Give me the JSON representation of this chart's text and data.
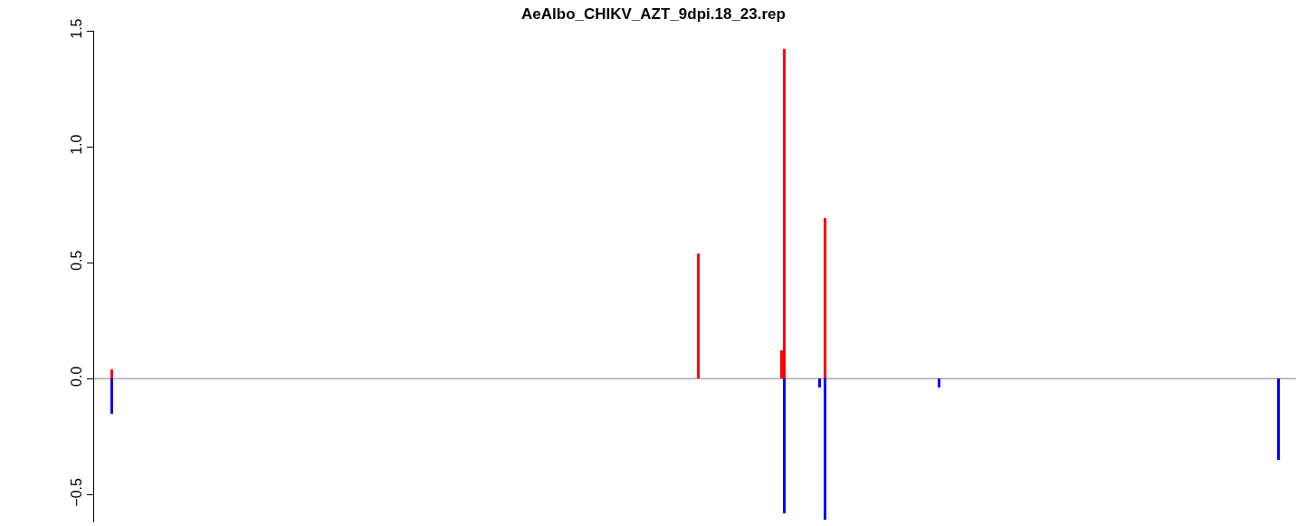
{
  "chart_data": {
    "type": "bar",
    "title": "AeAlbo_CHIKV_AZT_9dpi.18_23.rep",
    "grid": false,
    "tick_labels": "y",
    "ylim": [
      -0.62,
      1.5
    ],
    "yticks": [
      {
        "value": -0.5,
        "label": "−0.5"
      },
      {
        "value": 0,
        "label": "0.0"
      },
      {
        "value": 0.5,
        "label": "0.5"
      },
      {
        "value": 1,
        "label": "1.0"
      },
      {
        "value": 1.5,
        "label": "1.5"
      }
    ],
    "ref_lines": [
      {
        "axis": "y",
        "value": 0,
        "color": "#808080"
      }
    ],
    "categories": [
      null,
      null,
      null,
      null,
      null,
      null,
      null,
      null,
      null,
      null,
      null,
      null,
      null,
      null,
      null,
      null,
      null,
      null,
      null,
      null,
      null,
      null,
      null,
      null,
      null,
      null,
      null,
      null,
      null,
      null,
      null,
      null,
      null,
      null,
      null,
      null,
      null,
      null,
      null,
      null,
      null,
      null,
      null,
      null,
      null,
      null,
      null,
      null,
      null,
      null,
      null,
      null,
      null,
      null,
      null,
      null,
      null,
      null,
      null,
      null,
      null,
      null,
      null,
      null,
      null,
      null,
      null,
      null,
      null,
      null,
      null,
      null,
      null,
      null,
      null,
      null,
      null,
      null,
      null,
      null,
      null,
      null,
      null,
      null,
      null,
      null,
      null,
      null,
      null,
      null,
      null,
      null,
      null,
      null,
      null,
      null,
      null,
      null,
      null,
      null,
      null,
      null,
      null,
      null,
      null,
      null,
      null,
      null,
      null,
      null,
      null,
      null,
      null,
      null,
      null,
      null,
      null,
      null,
      null,
      null,
      null,
      null,
      null,
      null,
      null,
      null,
      null,
      null,
      null,
      null,
      null,
      null,
      null,
      null,
      null,
      null,
      null,
      null,
      null,
      null,
      null,
      null,
      null,
      null,
      null,
      null,
      null,
      null,
      null,
      null,
      null,
      null,
      null,
      null,
      null,
      null,
      null,
      null,
      null,
      null,
      null,
      null,
      null,
      null,
      null,
      null,
      null,
      null,
      null,
      null,
      null,
      null,
      null,
      null,
      null,
      null,
      null,
      null,
      null,
      null,
      null,
      null,
      null,
      null,
      null,
      null,
      null,
      null,
      null,
      null,
      null,
      null,
      null,
      null,
      null,
      null,
      null,
      null,
      null,
      null,
      null,
      null,
      null,
      null,
      null,
      null,
      null,
      null,
      null,
      null,
      null,
      null,
      null,
      null,
      null,
      null,
      null,
      null,
      null,
      null,
      null,
      null,
      null,
      null,
      null,
      null,
      null,
      null,
      null,
      null,
      null,
      null,
      null,
      null,
      null,
      null,
      null,
      null,
      null,
      null,
      null,
      null,
      null,
      null,
      null,
      null,
      null,
      null,
      null,
      null,
      null,
      null,
      null,
      null,
      null,
      null,
      null,
      null,
      null,
      null,
      null,
      null,
      null,
      null,
      null,
      null,
      null,
      null,
      null,
      null,
      null,
      null,
      null,
      null,
      null,
      null,
      null,
      null,
      null,
      null,
      null,
      null,
      null,
      null,
      null,
      null,
      null,
      null,
      null,
      null,
      null,
      null,
      null,
      null,
      null,
      null,
      null,
      null,
      null,
      null,
      null,
      null,
      null,
      null,
      null,
      null,
      null,
      null,
      null,
      null,
      null,
      null,
      null,
      null,
      null,
      null,
      null,
      null,
      null,
      null,
      null,
      null,
      null,
      null,
      null,
      null,
      null,
      null,
      null,
      null,
      null,
      null,
      null,
      null,
      null,
      null,
      null,
      null,
      null,
      null,
      null,
      null,
      null,
      null,
      null,
      null,
      null,
      null,
      null,
      null,
      null,
      null,
      null,
      null,
      null,
      null,
      null,
      null,
      null,
      null,
      null,
      null,
      null,
      null,
      null,
      null,
      null,
      null,
      null,
      null,
      null,
      null,
      null,
      null,
      null,
      null,
      null,
      null,
      null,
      null,
      null,
      null,
      null,
      null,
      null,
      null,
      null,
      null,
      null,
      null,
      null,
      null,
      null,
      null,
      null,
      null,
      null,
      null,
      null,
      null,
      null,
      null,
      null,
      null,
      null,
      null,
      null,
      null,
      null,
      null,
      null,
      null,
      null,
      null,
      null,
      null,
      null,
      null,
      null,
      null,
      null,
      null,
      null,
      null,
      null,
      null,
      null,
      null,
      null,
      null,
      null,
      null,
      null,
      null,
      null,
      null,
      null,
      null,
      null,
      null,
      null,
      null,
      null
    ],
    "series": [
      {
        "color": "#ff0000",
        "values": [
          null,
          null,
          null,
          null,
          null,
          null,
          0.04,
          null,
          null,
          null,
          null,
          null,
          null,
          null,
          null,
          null,
          null,
          null,
          null,
          null,
          null,
          null,
          null,
          null,
          null,
          null,
          null,
          null,
          null,
          null,
          null,
          null,
          null,
          null,
          null,
          null,
          null,
          null,
          null,
          null,
          null,
          null,
          null,
          null,
          null,
          null,
          null,
          null,
          null,
          null,
          null,
          null,
          null,
          null,
          null,
          null,
          null,
          null,
          null,
          null,
          null,
          null,
          null,
          null,
          null,
          null,
          null,
          null,
          null,
          null,
          null,
          null,
          null,
          null,
          null,
          null,
          null,
          null,
          null,
          null,
          null,
          null,
          null,
          null,
          null,
          null,
          null,
          null,
          null,
          null,
          null,
          null,
          null,
          null,
          null,
          null,
          null,
          null,
          null,
          null,
          null,
          null,
          null,
          null,
          null,
          null,
          null,
          null,
          null,
          null,
          null,
          null,
          null,
          null,
          null,
          null,
          null,
          null,
          null,
          null,
          null,
          null,
          null,
          null,
          null,
          null,
          null,
          null,
          null,
          null,
          null,
          null,
          null,
          null,
          null,
          null,
          null,
          null,
          null,
          null,
          null,
          null,
          null,
          null,
          null,
          null,
          null,
          null,
          null,
          null,
          null,
          null,
          null,
          null,
          null,
          null,
          null,
          null,
          null,
          null,
          null,
          null,
          null,
          null,
          null,
          null,
          null,
          null,
          null,
          null,
          null,
          null,
          null,
          null,
          null,
          null,
          null,
          null,
          null,
          null,
          null,
          null,
          null,
          null,
          null,
          null,
          null,
          null,
          null,
          null,
          null,
          null,
          null,
          null,
          null,
          null,
          null,
          null,
          null,
          null,
          null,
          null,
          null,
          null,
          null,
          null,
          null,
          null,
          null,
          null,
          null,
          null,
          null,
          null,
          null,
          null,
          null,
          null,
          null,
          null,
          null,
          null,
          0.54,
          null,
          null,
          null,
          null,
          null,
          null,
          null,
          null,
          null,
          null,
          null,
          null,
          null,
          null,
          null,
          null,
          null,
          null,
          null,
          null,
          null,
          null,
          null,
          null,
          null,
          null,
          null,
          null,
          null,
          null,
          0.12,
          1.42,
          null,
          null,
          null,
          null,
          null,
          null,
          null,
          null,
          null,
          null,
          null,
          null,
          null,
          null,
          0.69,
          null,
          null,
          null,
          null,
          null,
          null,
          null,
          null,
          null,
          null,
          null,
          null,
          null,
          null,
          null,
          null,
          null,
          null,
          null,
          null,
          null,
          null,
          null,
          null,
          null,
          null,
          null,
          null,
          null,
          null,
          null,
          null,
          null,
          null,
          null,
          null,
          null,
          null,
          null,
          null,
          null,
          null,
          null,
          null,
          null,
          null,
          null,
          null,
          null,
          null,
          null,
          null,
          null,
          null,
          null,
          null,
          null,
          null,
          null,
          null,
          null,
          null,
          null,
          null,
          null,
          null,
          null,
          null,
          null,
          null,
          null,
          null,
          null,
          null,
          null,
          null,
          null,
          null,
          null,
          null,
          null,
          null,
          null,
          null,
          null,
          null,
          null,
          null,
          null,
          null,
          null,
          null,
          null,
          null,
          null,
          null,
          null,
          null,
          null,
          null,
          null,
          null,
          null,
          null,
          null,
          null,
          null,
          null,
          null,
          null,
          null,
          null,
          null,
          null,
          null,
          null,
          null,
          null,
          null,
          null,
          null,
          null,
          null,
          null,
          null,
          null,
          null,
          null,
          null,
          null,
          null,
          null,
          null,
          null,
          null,
          null,
          null,
          null,
          null,
          null,
          null,
          null,
          null,
          null,
          null,
          null,
          null,
          null,
          null,
          null,
          null,
          null,
          null,
          null,
          null,
          null,
          null,
          null,
          null,
          null,
          null,
          null,
          null,
          null,
          null,
          null,
          null,
          null,
          null,
          null,
          null,
          null,
          null
        ]
      },
      {
        "color": "#0000ff",
        "values": [
          null,
          null,
          null,
          null,
          null,
          null,
          -0.15,
          null,
          null,
          null,
          null,
          null,
          null,
          null,
          null,
          null,
          null,
          null,
          null,
          null,
          null,
          null,
          null,
          null,
          null,
          null,
          null,
          null,
          null,
          null,
          null,
          null,
          null,
          null,
          null,
          null,
          null,
          null,
          null,
          null,
          null,
          null,
          null,
          null,
          null,
          null,
          null,
          null,
          null,
          null,
          null,
          null,
          null,
          null,
          null,
          null,
          null,
          null,
          null,
          null,
          null,
          null,
          null,
          null,
          null,
          null,
          null,
          null,
          null,
          null,
          null,
          null,
          null,
          null,
          null,
          null,
          null,
          null,
          null,
          null,
          null,
          null,
          null,
          null,
          null,
          null,
          null,
          null,
          null,
          null,
          null,
          null,
          null,
          null,
          null,
          null,
          null,
          null,
          null,
          null,
          null,
          null,
          null,
          null,
          null,
          null,
          null,
          null,
          null,
          null,
          null,
          null,
          null,
          null,
          null,
          null,
          null,
          null,
          null,
          null,
          null,
          null,
          null,
          null,
          null,
          null,
          null,
          null,
          null,
          null,
          null,
          null,
          null,
          null,
          null,
          null,
          null,
          null,
          null,
          null,
          null,
          null,
          null,
          null,
          null,
          null,
          null,
          null,
          null,
          null,
          null,
          null,
          null,
          null,
          null,
          null,
          null,
          null,
          null,
          null,
          null,
          null,
          null,
          null,
          null,
          null,
          null,
          null,
          null,
          null,
          null,
          null,
          null,
          null,
          null,
          null,
          null,
          null,
          null,
          null,
          null,
          null,
          null,
          null,
          null,
          null,
          null,
          null,
          null,
          null,
          null,
          null,
          null,
          null,
          null,
          null,
          null,
          null,
          null,
          null,
          null,
          null,
          null,
          null,
          null,
          null,
          null,
          null,
          null,
          null,
          null,
          null,
          null,
          null,
          null,
          null,
          null,
          null,
          null,
          null,
          null,
          null,
          null,
          null,
          null,
          null,
          null,
          null,
          null,
          null,
          null,
          null,
          null,
          null,
          null,
          null,
          null,
          null,
          null,
          null,
          null,
          null,
          null,
          null,
          null,
          null,
          null,
          null,
          null,
          null,
          null,
          null,
          null,
          null,
          -0.58,
          null,
          null,
          null,
          null,
          null,
          null,
          null,
          null,
          null,
          null,
          null,
          null,
          -0.04,
          null,
          -0.61,
          null,
          null,
          null,
          null,
          null,
          null,
          null,
          null,
          null,
          null,
          null,
          null,
          null,
          null,
          null,
          null,
          null,
          null,
          null,
          null,
          null,
          null,
          null,
          null,
          null,
          null,
          null,
          null,
          null,
          null,
          null,
          null,
          null,
          null,
          null,
          null,
          null,
          null,
          null,
          null,
          null,
          -0.04,
          null,
          null,
          null,
          null,
          null,
          null,
          null,
          null,
          null,
          null,
          null,
          null,
          null,
          null,
          null,
          null,
          null,
          null,
          null,
          null,
          null,
          null,
          null,
          null,
          null,
          null,
          null,
          null,
          null,
          null,
          null,
          null,
          null,
          null,
          null,
          null,
          null,
          null,
          null,
          null,
          null,
          null,
          null,
          null,
          null,
          null,
          null,
          null,
          null,
          null,
          null,
          null,
          null,
          null,
          null,
          null,
          null,
          null,
          null,
          null,
          null,
          null,
          null,
          null,
          null,
          null,
          null,
          null,
          null,
          null,
          null,
          null,
          null,
          null,
          null,
          null,
          null,
          null,
          null,
          null,
          null,
          null,
          null,
          null,
          null,
          null,
          null,
          null,
          null,
          null,
          null,
          null,
          null,
          null,
          null,
          null,
          null,
          null,
          null,
          null,
          null,
          null,
          null,
          null,
          null,
          null,
          null,
          null,
          null,
          null,
          null,
          null,
          null,
          null,
          null,
          null,
          null,
          null,
          null,
          null,
          null,
          null,
          null,
          null,
          -0.35,
          null,
          null,
          null,
          null,
          null,
          null
        ]
      }
    ]
  }
}
